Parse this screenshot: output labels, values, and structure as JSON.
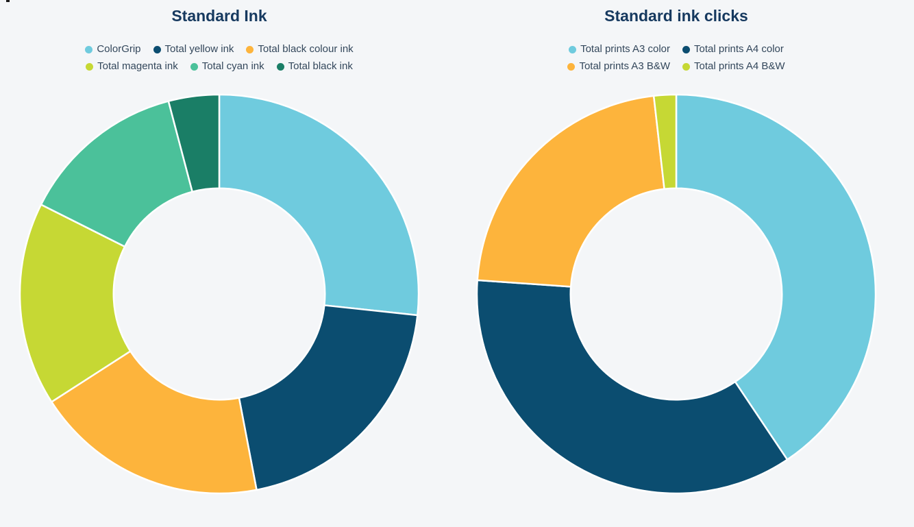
{
  "page": {
    "background": "#f4f6f8",
    "title_color": "#16395f",
    "legend_text_color": "#33475b"
  },
  "chart_data": [
    {
      "type": "pie",
      "subtype": "donut",
      "title": "Standard Ink",
      "direction": "clockwise",
      "start_angle_deg": 0,
      "inner_radius_ratio": 0.53,
      "legend_position": "top",
      "legend_rows": [
        3,
        3
      ],
      "series": [
        {
          "name": "ColorGrip",
          "percent": 26.7,
          "color": "#6fcbde"
        },
        {
          "name": "Total yellow ink",
          "percent": 20.3,
          "color": "#0b4d70"
        },
        {
          "name": "Total black colour ink",
          "percent": 18.9,
          "color": "#fdb43c"
        },
        {
          "name": "Total magenta ink",
          "percent": 16.5,
          "color": "#c6d834"
        },
        {
          "name": "Total cyan ink",
          "percent": 13.5,
          "color": "#4bc19a"
        },
        {
          "name": "Total black ink",
          "percent": 4.1,
          "color": "#1a7e66"
        }
      ]
    },
    {
      "type": "pie",
      "subtype": "donut",
      "title": "Standard ink clicks",
      "direction": "clockwise",
      "start_angle_deg": 0,
      "inner_radius_ratio": 0.53,
      "legend_position": "top",
      "legend_rows": [
        2,
        2
      ],
      "series": [
        {
          "name": "Total prints A3 color",
          "percent": 40.6,
          "color": "#6fcbde"
        },
        {
          "name": "Total prints A4 color",
          "percent": 35.5,
          "color": "#0b4d70"
        },
        {
          "name": "Total prints A3 B&W",
          "percent": 22.1,
          "color": "#fdb43c"
        },
        {
          "name": "Total prints A4 B&W",
          "percent": 1.8,
          "color": "#c6d834"
        }
      ]
    }
  ]
}
